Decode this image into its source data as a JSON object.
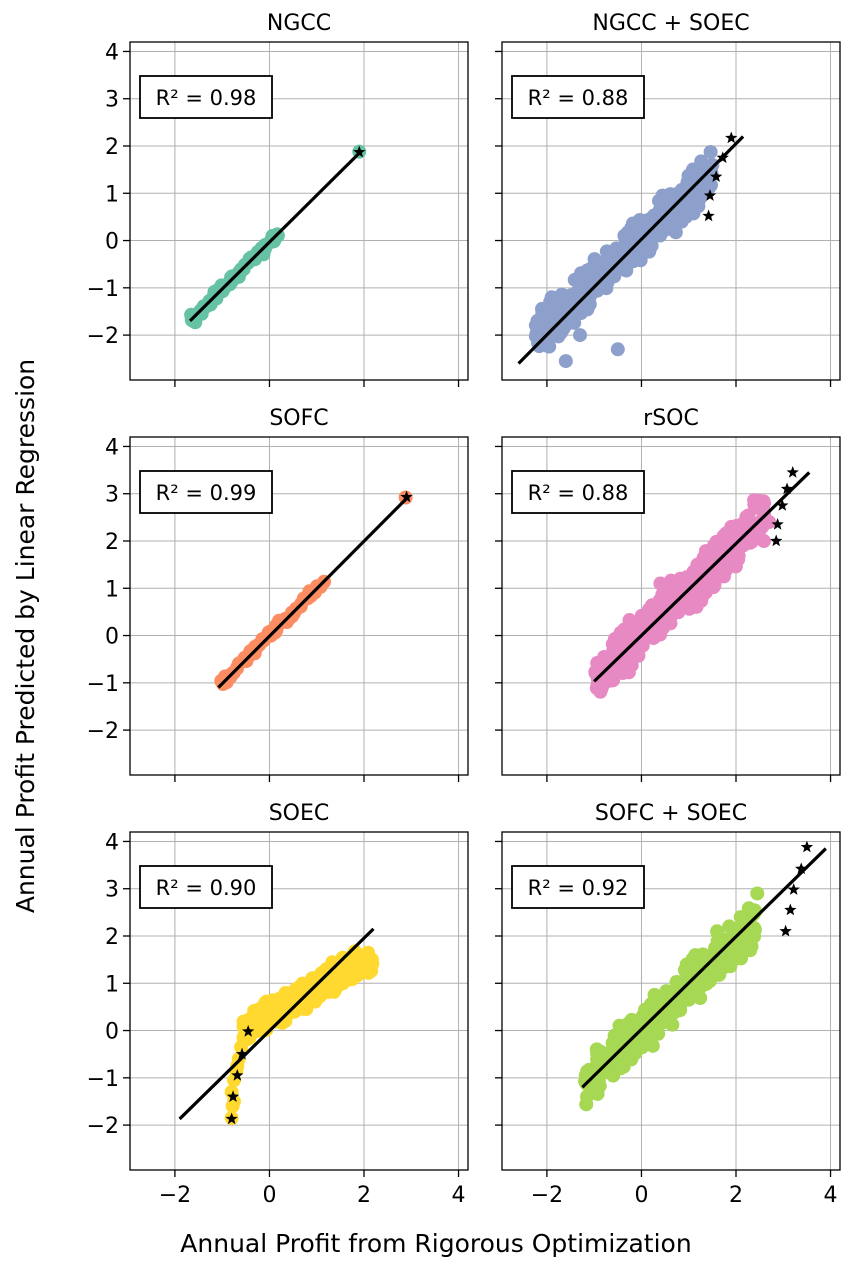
{
  "figure": {
    "xlabel": "Annual Profit from Rigorous Optimization",
    "ylabel": "Annual Profit Predicted by Linear Regression"
  },
  "chart_data": [
    {
      "type": "scatter",
      "title": "NGCC",
      "r2_label": "R² = 0.98",
      "color": "#66c2a5",
      "xlim": [
        -2.95,
        4.2
      ],
      "ylim": [
        -2.95,
        4.2
      ],
      "xticks": [
        -2,
        0,
        2,
        4
      ],
      "yticks": [
        -2,
        -1,
        0,
        1,
        2,
        3,
        4
      ],
      "xticklabels": [],
      "yticklabels": [
        "−2",
        "−1",
        "0",
        "1",
        "2",
        "3",
        "4"
      ],
      "grid": true,
      "fit_line": [
        [
          -1.68,
          -1.7
        ],
        [
          1.95,
          1.9
        ]
      ],
      "cluster": {
        "seed": 11,
        "n": 70,
        "x_range": [
          -1.7,
          0.2
        ],
        "slope": 0.99,
        "intercept": -0.04,
        "noise": 0.05
      },
      "extra_points": [
        [
          1.9,
          1.88
        ]
      ],
      "stars": [
        [
          1.9,
          1.87
        ]
      ]
    },
    {
      "type": "scatter",
      "title": "NGCC + SOEC",
      "r2_label": "R² = 0.88",
      "color": "#8da0cb",
      "xlim": [
        -2.95,
        4.2
      ],
      "ylim": [
        -2.95,
        4.2
      ],
      "xticks": [
        -2,
        0,
        2,
        4
      ],
      "yticks": [
        -2,
        -1,
        0,
        1,
        2,
        3,
        4
      ],
      "xticklabels": [],
      "yticklabels": [],
      "grid": true,
      "fit_line": [
        [
          -2.6,
          -2.6
        ],
        [
          2.15,
          2.2
        ]
      ],
      "cluster": {
        "seed": 23,
        "n": 380,
        "x_range": [
          -2.25,
          1.5
        ],
        "slope": 0.92,
        "intercept": 0.05,
        "noise": 0.22
      },
      "extra_points": [
        [
          -0.5,
          -2.3
        ],
        [
          -1.6,
          -2.55
        ],
        [
          -2.2,
          -1.7
        ],
        [
          1.5,
          1.6
        ],
        [
          1.2,
          1.4
        ],
        [
          -1.9,
          -1.2
        ],
        [
          -1.3,
          -2.0
        ]
      ],
      "stars": [
        [
          1.9,
          2.17
        ],
        [
          1.72,
          1.75
        ],
        [
          1.58,
          1.35
        ],
        [
          1.45,
          0.95
        ],
        [
          1.42,
          0.52
        ]
      ]
    },
    {
      "type": "scatter",
      "title": "SOFC",
      "r2_label": "R² = 0.99",
      "color": "#fc8d62",
      "xlim": [
        -2.95,
        4.2
      ],
      "ylim": [
        -2.95,
        4.2
      ],
      "xticks": [
        -2,
        0,
        2,
        4
      ],
      "yticks": [
        -2,
        -1,
        0,
        1,
        2,
        3,
        4
      ],
      "xticklabels": [],
      "yticklabels": [
        "−2",
        "−1",
        "0",
        "1",
        "2",
        "3",
        "4"
      ],
      "grid": true,
      "fit_line": [
        [
          -1.08,
          -1.1
        ],
        [
          2.95,
          2.95
        ]
      ],
      "cluster": {
        "seed": 37,
        "n": 80,
        "x_range": [
          -1.05,
          1.2
        ],
        "slope": 1.0,
        "intercept": 0.0,
        "noise": 0.04
      },
      "extra_points": [
        [
          2.88,
          2.92
        ]
      ],
      "stars": [
        [
          2.9,
          2.93
        ]
      ]
    },
    {
      "type": "scatter",
      "title": "rSOC",
      "r2_label": "R² = 0.88",
      "color": "#e78ac3",
      "xlim": [
        -2.95,
        4.2
      ],
      "ylim": [
        -2.95,
        4.2
      ],
      "xticks": [
        -2,
        0,
        2,
        4
      ],
      "yticks": [
        -2,
        -1,
        0,
        1,
        2,
        3,
        4
      ],
      "xticklabels": [],
      "yticklabels": [],
      "grid": true,
      "fit_line": [
        [
          -1.0,
          -0.97
        ],
        [
          3.55,
          3.45
        ]
      ],
      "cluster": {
        "seed": 53,
        "n": 380,
        "x_range": [
          -1.0,
          2.6
        ],
        "slope": 0.95,
        "intercept": 0.05,
        "noise": 0.24
      },
      "extra_points": [
        [
          2.5,
          2.85
        ],
        [
          1.9,
          2.3
        ],
        [
          0.4,
          1.1
        ],
        [
          2.7,
          2.4
        ],
        [
          -0.9,
          -0.75
        ]
      ],
      "stars": [
        [
          3.2,
          3.45
        ],
        [
          3.08,
          3.1
        ],
        [
          2.98,
          2.75
        ],
        [
          2.88,
          2.35
        ],
        [
          2.85,
          2.0
        ]
      ]
    },
    {
      "type": "scatter",
      "title": "SOEC",
      "r2_label": "R² = 0.90",
      "color": "#ffd92f",
      "xlim": [
        -2.95,
        4.2
      ],
      "ylim": [
        -2.95,
        4.2
      ],
      "xticks": [
        -2,
        0,
        2,
        4
      ],
      "yticks": [
        -2,
        -1,
        0,
        1,
        2,
        3,
        4
      ],
      "xticklabels": [
        "−2",
        "0",
        "2",
        "4"
      ],
      "yticklabels": [
        "−2",
        "−1",
        "0",
        "1",
        "2",
        "3",
        "4"
      ],
      "grid": true,
      "fit_line": [
        [
          -1.9,
          -1.87
        ],
        [
          2.2,
          2.15
        ]
      ],
      "cluster": {
        "seed": 71,
        "n": 330,
        "x_range": [
          -0.55,
          2.2
        ],
        "slope": 0.55,
        "intercept": 0.35,
        "noise": 0.14
      },
      "extra_points": [
        [
          -0.8,
          -1.85
        ],
        [
          -0.78,
          -1.6
        ],
        [
          -0.8,
          -1.3
        ],
        [
          -0.75,
          -1.05
        ],
        [
          -0.7,
          -0.85
        ],
        [
          -0.65,
          -0.6
        ],
        [
          -0.6,
          -0.35
        ],
        [
          -0.55,
          -0.15
        ],
        [
          -0.75,
          -1.5
        ],
        [
          -0.68,
          -0.75
        ]
      ],
      "stars": [
        [
          -0.45,
          -0.02
        ],
        [
          -0.58,
          -0.5
        ],
        [
          -0.68,
          -0.95
        ],
        [
          -0.77,
          -1.4
        ],
        [
          -0.8,
          -1.87
        ]
      ]
    },
    {
      "type": "scatter",
      "title": "SOFC + SOEC",
      "r2_label": "R² = 0.92",
      "color": "#a6d854",
      "xlim": [
        -2.95,
        4.2
      ],
      "ylim": [
        -2.95,
        4.2
      ],
      "xticks": [
        -2,
        0,
        2,
        4
      ],
      "yticks": [
        -2,
        -1,
        0,
        1,
        2,
        3,
        4
      ],
      "xticklabels": [
        "−2",
        "0",
        "2",
        "4"
      ],
      "yticklabels": [],
      "grid": true,
      "fit_line": [
        [
          -1.25,
          -1.2
        ],
        [
          3.9,
          3.85
        ]
      ],
      "cluster": {
        "seed": 97,
        "n": 380,
        "x_range": [
          -1.2,
          2.4
        ],
        "slope": 0.93,
        "intercept": 0.0,
        "noise": 0.22
      },
      "extra_points": [
        [
          2.45,
          2.9
        ],
        [
          2.1,
          2.4
        ],
        [
          2.3,
          1.7
        ],
        [
          -1.0,
          -1.05
        ],
        [
          1.6,
          2.1
        ]
      ],
      "stars": [
        [
          3.5,
          3.88
        ],
        [
          3.38,
          3.42
        ],
        [
          3.22,
          2.98
        ],
        [
          3.15,
          2.55
        ],
        [
          3.05,
          2.1
        ]
      ]
    }
  ]
}
